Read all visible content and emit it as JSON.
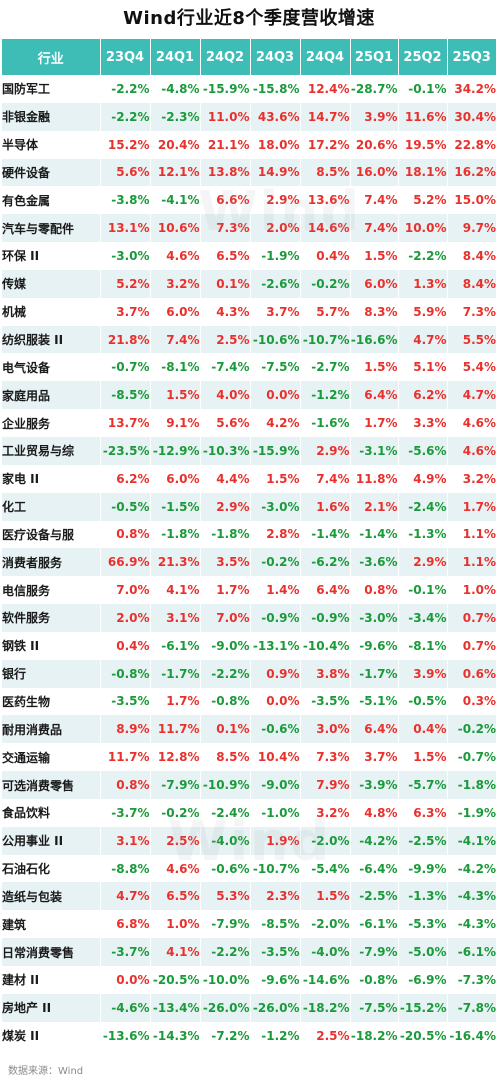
{
  "title": "Wind行业近8个季度营收增速",
  "headers": [
    "行业",
    "23Q4",
    "24Q1",
    "24Q2",
    "24Q3",
    "24Q4",
    "25Q1",
    "25Q2",
    "25Q3"
  ],
  "rows": [
    {
      "industry": "国防军工",
      "values": [
        "-2.2%",
        "-4.8%",
        "-15.9%",
        "-15.8%",
        "12.4%",
        "-28.7%",
        "-0.1%",
        "34.2%"
      ]
    },
    {
      "industry": "非银金融",
      "values": [
        "-2.2%",
        "-2.3%",
        "11.0%",
        "43.6%",
        "14.7%",
        "3.9%",
        "11.6%",
        "30.4%"
      ]
    },
    {
      "industry": "半导体",
      "values": [
        "15.2%",
        "20.4%",
        "21.1%",
        "18.0%",
        "17.2%",
        "20.6%",
        "19.5%",
        "22.8%"
      ]
    },
    {
      "industry": "硬件设备",
      "values": [
        "5.6%",
        "12.1%",
        "13.8%",
        "14.9%",
        "8.5%",
        "16.0%",
        "18.1%",
        "16.2%"
      ]
    },
    {
      "industry": "有色金属",
      "values": [
        "-3.8%",
        "-4.1%",
        "6.6%",
        "2.9%",
        "13.6%",
        "7.4%",
        "5.2%",
        "15.0%"
      ]
    },
    {
      "industry": "汽车与零配件",
      "values": [
        "13.1%",
        "10.6%",
        "7.3%",
        "2.0%",
        "14.6%",
        "7.4%",
        "10.0%",
        "9.7%"
      ]
    },
    {
      "industry": "环保 II",
      "values": [
        "-3.0%",
        "4.6%",
        "6.5%",
        "-1.9%",
        "0.4%",
        "1.5%",
        "-2.2%",
        "8.4%"
      ]
    },
    {
      "industry": "传媒",
      "values": [
        "5.2%",
        "3.2%",
        "0.1%",
        "-2.6%",
        "-0.2%",
        "6.0%",
        "1.3%",
        "8.4%"
      ]
    },
    {
      "industry": "机械",
      "values": [
        "3.7%",
        "6.0%",
        "4.3%",
        "3.7%",
        "5.7%",
        "8.3%",
        "5.9%",
        "7.3%"
      ]
    },
    {
      "industry": "纺织服装 II",
      "values": [
        "21.8%",
        "7.4%",
        "2.5%",
        "-10.6%",
        "-10.7%",
        "-16.6%",
        "4.7%",
        "5.5%"
      ]
    },
    {
      "industry": "电气设备",
      "values": [
        "-0.7%",
        "-8.1%",
        "-7.4%",
        "-7.5%",
        "-2.7%",
        "1.5%",
        "5.1%",
        "5.4%"
      ]
    },
    {
      "industry": "家庭用品",
      "values": [
        "-8.5%",
        "1.5%",
        "4.0%",
        "0.0%",
        "-1.2%",
        "6.4%",
        "6.2%",
        "4.7%"
      ]
    },
    {
      "industry": "企业服务",
      "values": [
        "13.7%",
        "9.1%",
        "5.6%",
        "4.2%",
        "-1.6%",
        "1.7%",
        "3.3%",
        "4.6%"
      ]
    },
    {
      "industry": "工业贸易与综",
      "values": [
        "-23.5%",
        "-12.9%",
        "-10.3%",
        "-15.9%",
        "2.9%",
        "-3.1%",
        "-5.6%",
        "4.6%"
      ]
    },
    {
      "industry": "家电 II",
      "values": [
        "6.2%",
        "6.0%",
        "4.4%",
        "1.5%",
        "7.4%",
        "11.8%",
        "4.9%",
        "3.2%"
      ]
    },
    {
      "industry": "化工",
      "values": [
        "-0.5%",
        "-1.5%",
        "2.9%",
        "-3.0%",
        "1.6%",
        "2.1%",
        "-2.4%",
        "1.7%"
      ]
    },
    {
      "industry": "医疗设备与服",
      "values": [
        "0.8%",
        "-1.8%",
        "-1.8%",
        "2.8%",
        "-1.4%",
        "-1.4%",
        "-1.3%",
        "1.1%"
      ]
    },
    {
      "industry": "消费者服务",
      "values": [
        "66.9%",
        "21.3%",
        "3.5%",
        "-0.2%",
        "-6.2%",
        "-3.6%",
        "2.9%",
        "1.1%"
      ]
    },
    {
      "industry": "电信服务",
      "values": [
        "7.0%",
        "4.1%",
        "1.7%",
        "1.4%",
        "6.4%",
        "0.8%",
        "-0.1%",
        "1.0%"
      ]
    },
    {
      "industry": "软件服务",
      "values": [
        "2.0%",
        "3.1%",
        "7.0%",
        "-0.9%",
        "-0.9%",
        "-3.0%",
        "-3.4%",
        "0.7%"
      ]
    },
    {
      "industry": "钢铁 II",
      "values": [
        "0.4%",
        "-6.1%",
        "-9.0%",
        "-13.1%",
        "-10.4%",
        "-9.6%",
        "-8.1%",
        "0.7%"
      ]
    },
    {
      "industry": "银行",
      "values": [
        "-0.8%",
        "-1.7%",
        "-2.2%",
        "0.9%",
        "3.8%",
        "-1.7%",
        "3.9%",
        "0.6%"
      ]
    },
    {
      "industry": "医药生物",
      "values": [
        "-3.5%",
        "1.7%",
        "-0.8%",
        "0.0%",
        "-3.5%",
        "-5.1%",
        "-0.5%",
        "0.3%"
      ]
    },
    {
      "industry": "耐用消费品",
      "values": [
        "8.9%",
        "11.7%",
        "0.1%",
        "-0.6%",
        "3.0%",
        "6.4%",
        "0.4%",
        "-0.2%"
      ]
    },
    {
      "industry": "交通运输",
      "values": [
        "11.7%",
        "12.8%",
        "8.5%",
        "10.4%",
        "7.3%",
        "3.7%",
        "1.5%",
        "-0.7%"
      ]
    },
    {
      "industry": "可选消费零售",
      "values": [
        "0.8%",
        "-7.9%",
        "-10.9%",
        "-9.0%",
        "7.9%",
        "-3.9%",
        "-5.7%",
        "-1.8%"
      ]
    },
    {
      "industry": "食品饮料",
      "values": [
        "-3.7%",
        "-0.2%",
        "-2.4%",
        "-1.0%",
        "3.2%",
        "4.8%",
        "6.3%",
        "-1.9%"
      ]
    },
    {
      "industry": "公用事业 II",
      "values": [
        "3.1%",
        "2.5%",
        "-4.0%",
        "1.9%",
        "-2.0%",
        "-4.2%",
        "-2.5%",
        "-4.1%"
      ]
    },
    {
      "industry": "石油石化",
      "values": [
        "-8.8%",
        "4.6%",
        "-0.6%",
        "-10.7%",
        "-5.4%",
        "-6.4%",
        "-9.9%",
        "-4.2%"
      ]
    },
    {
      "industry": "造纸与包装",
      "values": [
        "4.7%",
        "6.5%",
        "5.3%",
        "2.3%",
        "1.5%",
        "-2.5%",
        "-1.3%",
        "-4.3%"
      ]
    },
    {
      "industry": "建筑",
      "values": [
        "6.8%",
        "1.0%",
        "-7.9%",
        "-8.5%",
        "-2.0%",
        "-6.1%",
        "-5.3%",
        "-4.3%"
      ]
    },
    {
      "industry": "日常消费零售",
      "values": [
        "-3.7%",
        "4.1%",
        "-2.2%",
        "-3.5%",
        "-4.0%",
        "-7.9%",
        "-5.0%",
        "-6.1%"
      ]
    },
    {
      "industry": "建材 II",
      "values": [
        "0.0%",
        "-20.5%",
        "-10.0%",
        "-9.6%",
        "-14.6%",
        "-0.8%",
        "-6.9%",
        "-7.3%"
      ]
    },
    {
      "industry": "房地产 II",
      "values": [
        "-4.6%",
        "-13.4%",
        "-26.0%",
        "-26.0%",
        "-18.2%",
        "-7.5%",
        "-15.2%",
        "-7.8%"
      ]
    },
    {
      "industry": "煤炭 II",
      "values": [
        "-13.6%",
        "-14.3%",
        "-7.2%",
        "-1.2%",
        "2.5%",
        "-18.2%",
        "-20.5%",
        "-16.4%"
      ]
    }
  ],
  "source": "数据来源：Wind",
  "watermark": "Wind",
  "colors": {
    "header_bg": "#3dbdb6",
    "positive": "#e8312d",
    "negative": "#1a9a3a",
    "stripe": "#e7f2f4"
  }
}
